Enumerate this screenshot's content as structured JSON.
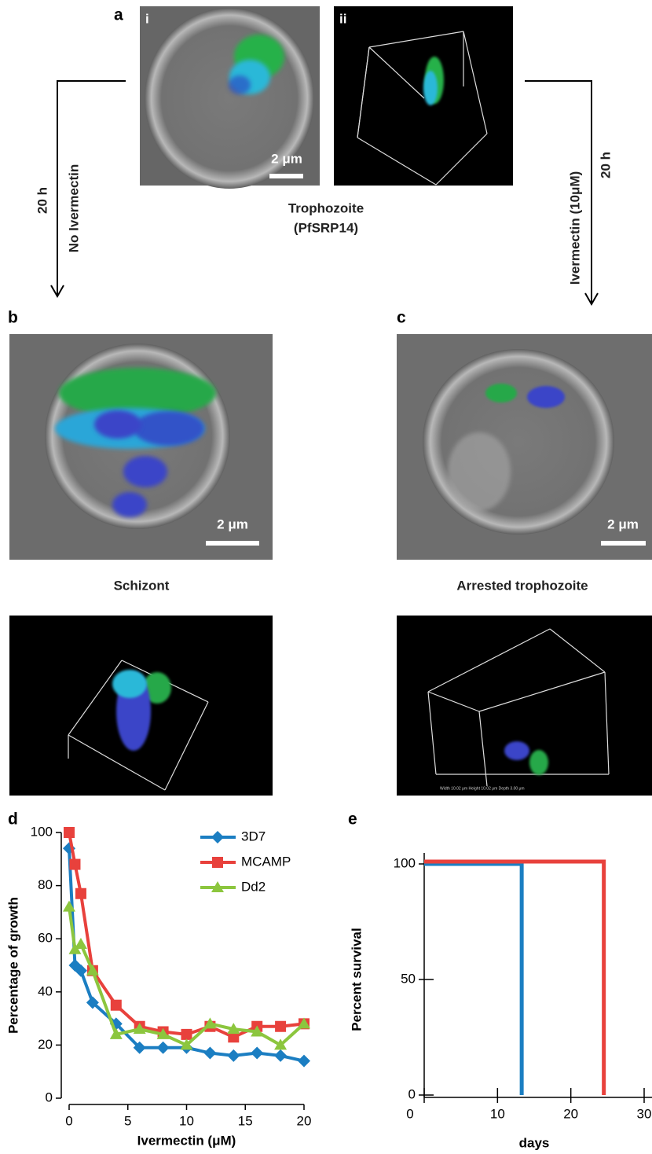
{
  "panel_a": {
    "label": "a",
    "image_i_label": "i",
    "image_ii_label": "ii",
    "scale_bar": "2 μm",
    "caption_line1": "Trophozoite",
    "caption_line2": "(PfSRP14)"
  },
  "arrow_left": {
    "time": "20 h",
    "treatment": "No Ivermectin"
  },
  "arrow_right": {
    "time": "20 h",
    "treatment": "Ivermectin (10μM)"
  },
  "panel_b": {
    "label": "b",
    "scale_bar": "2 μm",
    "caption": "Schizont"
  },
  "panel_c": {
    "label": "c",
    "scale_bar": "2 μm",
    "caption": "Arrested trophozoite",
    "dimensions": "Width 10.02 μm Height 10.02 μm Depth 3.00 μm"
  },
  "chart_data": [
    {
      "type": "line",
      "panel_label": "d",
      "xlabel": "Ivermectin (μM)",
      "ylabel": "Percentage of growth",
      "x": [
        0,
        0.5,
        1,
        2,
        4,
        6,
        8,
        10,
        12,
        14,
        16,
        18,
        20
      ],
      "series": [
        {
          "name": "3D7",
          "color": "#1b7ec2",
          "marker": "diamond",
          "values": [
            94,
            50,
            48,
            36,
            28,
            19,
            19,
            19,
            17,
            16,
            17,
            16,
            14
          ]
        },
        {
          "name": "MCAMP",
          "color": "#e8413c",
          "marker": "square",
          "values": [
            100,
            88,
            77,
            48,
            35,
            27,
            25,
            24,
            27,
            23,
            27,
            27,
            28
          ]
        },
        {
          "name": "Dd2",
          "color": "#8cc63e",
          "marker": "triangle",
          "values": [
            72,
            56,
            58,
            48,
            24,
            26,
            24,
            20,
            28,
            26,
            25,
            20,
            28
          ]
        }
      ],
      "xlim": [
        0,
        20
      ],
      "ylim": [
        0,
        100
      ],
      "xticks": [
        0,
        5,
        10,
        15,
        20
      ],
      "yticks": [
        0,
        20,
        40,
        60,
        80,
        100
      ],
      "legend": "upper right"
    },
    {
      "type": "step",
      "panel_label": "e",
      "xlabel": "days",
      "ylabel": "Percent survival",
      "series": [
        {
          "color": "#1b7ec2",
          "x": [
            0,
            13.3,
            13.3
          ],
          "values": [
            100,
            100,
            0
          ]
        },
        {
          "color": "#e8413c",
          "x": [
            0,
            24.5,
            24.5
          ],
          "values": [
            101,
            101,
            0
          ]
        }
      ],
      "xlim": [
        0,
        30
      ],
      "ylim": [
        0,
        100
      ],
      "xticks": [
        0,
        10,
        20,
        30
      ],
      "yticks": [
        0,
        50,
        100
      ]
    }
  ]
}
